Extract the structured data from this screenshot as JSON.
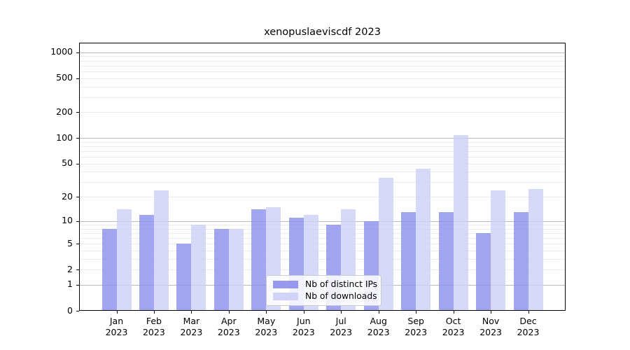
{
  "title": "xenopuslaeviscdf 2023",
  "chart_data": {
    "type": "bar",
    "title": "xenopuslaeviscdf 2023",
    "yscale": "log1p",
    "grid": true,
    "legend_position": "lower center",
    "ylim": [
      0,
      1290
    ],
    "y_ticks": [
      0,
      1,
      2,
      5,
      10,
      20,
      50,
      100,
      200,
      500,
      1000
    ],
    "categories": [
      "Jan 2023",
      "Feb 2023",
      "Mar 2023",
      "Apr 2023",
      "May 2023",
      "Jun 2023",
      "Jul 2023",
      "Aug 2023",
      "Sep 2023",
      "Oct 2023",
      "Nov 2023",
      "Dec 2023"
    ],
    "x_tick_month": [
      "Jan",
      "Feb",
      "Mar",
      "Apr",
      "May",
      "Jun",
      "Jul",
      "Aug",
      "Sep",
      "Oct",
      "Nov",
      "Dec"
    ],
    "x_tick_year": "2023",
    "series": [
      {
        "name": "Nb of distinct IPs",
        "color": "#8b8eec",
        "values": [
          8,
          12,
          5,
          8,
          14,
          11,
          9,
          10,
          13,
          13,
          7,
          13
        ]
      },
      {
        "name": "Nb of downloads",
        "color": "#cdcff6",
        "values": [
          14,
          24,
          9,
          8,
          15,
          12,
          14,
          34,
          44,
          108,
          24,
          25
        ]
      }
    ]
  },
  "colors": {
    "major_grid": "#b9b9b9",
    "minor_grid": "#ececec",
    "spine": "#000000",
    "background": "#ffffff"
  }
}
